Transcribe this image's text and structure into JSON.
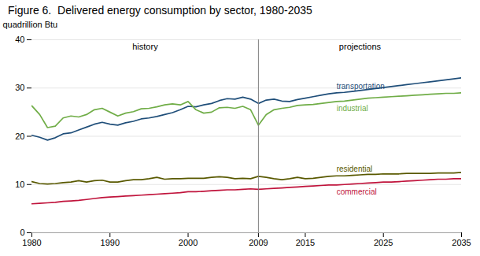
{
  "chart_data": {
    "type": "line",
    "title": "Figure 6.  Delivered energy consumption by sector, 1980-2035",
    "y_label": "quadrillion Btu",
    "x": [
      1980,
      1981,
      1982,
      1983,
      1984,
      1985,
      1986,
      1987,
      1988,
      1989,
      1990,
      1991,
      1992,
      1993,
      1994,
      1995,
      1996,
      1997,
      1998,
      1999,
      2000,
      2001,
      2002,
      2003,
      2004,
      2005,
      2006,
      2007,
      2008,
      2009,
      2010,
      2011,
      2012,
      2013,
      2014,
      2015,
      2016,
      2017,
      2018,
      2019,
      2020,
      2021,
      2022,
      2023,
      2024,
      2025,
      2026,
      2027,
      2028,
      2029,
      2030,
      2031,
      2032,
      2033,
      2034,
      2035
    ],
    "series": [
      {
        "name": "transportation",
        "color": "#1f4e79",
        "values": [
          20.2,
          19.8,
          19.2,
          19.7,
          20.5,
          20.7,
          21.3,
          21.9,
          22.5,
          22.9,
          22.5,
          22.3,
          22.8,
          23.1,
          23.6,
          23.8,
          24.1,
          24.5,
          24.9,
          25.5,
          26.2,
          26.1,
          26.5,
          26.8,
          27.4,
          27.8,
          27.7,
          28.1,
          27.7,
          26.8,
          27.5,
          27.7,
          27.3,
          27.2,
          27.6,
          27.9,
          28.2,
          28.5,
          28.8,
          29.0,
          29.1,
          29.3,
          29.5,
          29.7,
          29.9,
          30.1,
          30.3,
          30.5,
          30.7,
          30.9,
          31.1,
          31.3,
          31.5,
          31.7,
          31.9,
          32.1
        ]
      },
      {
        "name": "industrial",
        "color": "#70ad47",
        "values": [
          26.3,
          24.5,
          21.8,
          22.1,
          23.8,
          24.2,
          24.0,
          24.5,
          25.5,
          25.8,
          25.0,
          24.2,
          24.8,
          25.1,
          25.7,
          25.8,
          26.1,
          26.5,
          26.7,
          26.5,
          27.2,
          25.5,
          24.8,
          25.0,
          25.9,
          26.0,
          25.8,
          26.2,
          25.5,
          22.3,
          24.5,
          25.5,
          25.8,
          26.0,
          26.4,
          26.5,
          26.6,
          26.8,
          27.0,
          27.2,
          27.3,
          27.5,
          27.7,
          27.9,
          28.0,
          28.1,
          28.2,
          28.3,
          28.4,
          28.5,
          28.6,
          28.7,
          28.8,
          28.9,
          28.9,
          29.0
        ]
      },
      {
        "name": "residential",
        "color": "#595900",
        "values": [
          10.6,
          10.2,
          10.1,
          10.2,
          10.4,
          10.5,
          10.8,
          10.5,
          10.8,
          10.9,
          10.5,
          10.5,
          10.8,
          11.0,
          11.0,
          11.2,
          11.5,
          11.1,
          11.2,
          11.2,
          11.3,
          11.3,
          11.3,
          11.5,
          11.6,
          11.5,
          11.2,
          11.3,
          11.2,
          11.7,
          11.5,
          11.2,
          11.0,
          11.2,
          11.5,
          11.2,
          11.3,
          11.5,
          11.7,
          11.8,
          11.8,
          11.9,
          12.0,
          12.1,
          12.1,
          12.2,
          12.2,
          12.2,
          12.3,
          12.3,
          12.3,
          12.3,
          12.4,
          12.4,
          12.4,
          12.5
        ]
      },
      {
        "name": "commercial",
        "color": "#c0143c",
        "values": [
          6.0,
          6.1,
          6.2,
          6.3,
          6.5,
          6.6,
          6.7,
          6.9,
          7.1,
          7.3,
          7.4,
          7.5,
          7.6,
          7.7,
          7.8,
          7.9,
          8.0,
          8.1,
          8.2,
          8.3,
          8.5,
          8.5,
          8.6,
          8.7,
          8.8,
          8.9,
          8.9,
          9.0,
          9.1,
          9.0,
          9.1,
          9.2,
          9.3,
          9.4,
          9.5,
          9.6,
          9.7,
          9.8,
          9.9,
          9.9,
          10.0,
          10.1,
          10.2,
          10.3,
          10.4,
          10.5,
          10.5,
          10.6,
          10.7,
          10.8,
          10.9,
          11.0,
          11.1,
          11.1,
          11.2,
          11.2
        ]
      }
    ],
    "divider_x": 2009,
    "annotations": [
      "history",
      "projections"
    ],
    "xlim": [
      1980,
      2035
    ],
    "xticks": [
      1980,
      1990,
      2000,
      2009,
      2015,
      2025,
      2035
    ],
    "ylim": [
      0,
      40
    ],
    "yticks": [
      0,
      10,
      20,
      30,
      40
    ],
    "grid": true
  }
}
